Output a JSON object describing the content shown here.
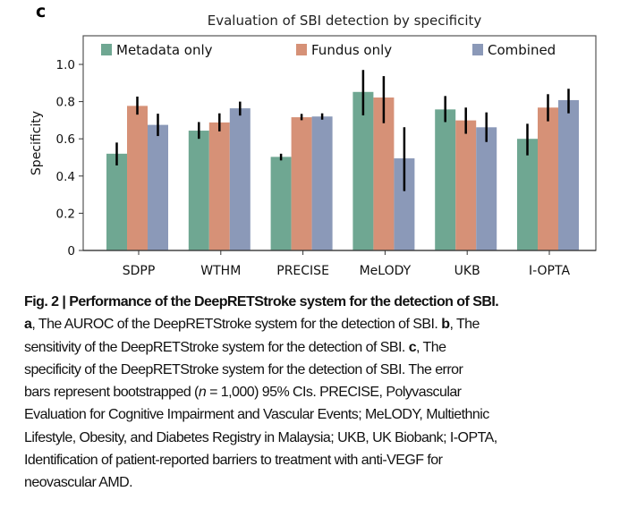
{
  "panel_letter": "c",
  "chart_data": {
    "type": "bar",
    "title": "Evaluation of SBI detection by specificity",
    "xlabel": "",
    "ylabel": "Specificity",
    "ylim": [
      0,
      1.1
    ],
    "yticks": [
      0,
      0.2,
      0.4,
      0.6,
      0.8,
      1.0
    ],
    "ytick_labels": [
      "0",
      "0.2",
      "0.4",
      "0.6",
      "0.8",
      "1.0"
    ],
    "categories": [
      "SDPP",
      "WTHM",
      "PRECISE",
      "MeLODY",
      "UKB",
      "I-OPTA"
    ],
    "legend_position": "top",
    "grid": false,
    "series": [
      {
        "name": "Metadata only",
        "color": "#6fa792",
        "values": [
          0.52,
          0.644,
          0.503,
          0.852,
          0.758,
          0.6
        ],
        "ci_low": [
          0.457,
          0.6,
          0.484,
          0.726,
          0.69,
          0.511
        ],
        "ci_high": [
          0.58,
          0.69,
          0.52,
          0.97,
          0.83,
          0.681
        ]
      },
      {
        "name": "Fundus only",
        "color": "#d69177",
        "values": [
          0.777,
          0.688,
          0.716,
          0.822,
          0.699,
          0.768
        ],
        "ci_low": [
          0.73,
          0.64,
          0.7,
          0.684,
          0.627,
          0.694
        ],
        "ci_high": [
          0.827,
          0.737,
          0.734,
          0.937,
          0.768,
          0.84
        ]
      },
      {
        "name": "Combined",
        "color": "#8b99b8",
        "values": [
          0.675,
          0.764,
          0.72,
          0.495,
          0.662,
          0.808
        ],
        "ci_low": [
          0.615,
          0.725,
          0.703,
          0.319,
          0.583,
          0.737
        ],
        "ci_high": [
          0.735,
          0.8,
          0.737,
          0.662,
          0.742,
          0.869
        ]
      }
    ]
  },
  "caption": {
    "lines": [
      [
        {
          "t": "Fig. 2 | Performance of the DeepRETStroke system for the detection of SBI.",
          "b": true
        }
      ],
      [
        {
          "t": "a",
          "b": true
        },
        {
          "t": ", The AUROC of the DeepRETStroke system for the detection of SBI. "
        },
        {
          "t": "b",
          "b": true
        },
        {
          "t": ", The"
        }
      ],
      [
        {
          "t": "sensitivity of the DeepRETStroke system for the detection of SBI. "
        },
        {
          "t": "c",
          "b": true
        },
        {
          "t": ", The"
        }
      ],
      [
        {
          "t": "specificity of the DeepRETStroke system for the detection of SBI. The error"
        }
      ],
      [
        {
          "t": "bars represent bootstrapped ("
        },
        {
          "t": "n",
          "i": true
        },
        {
          "t": " = 1,000) 95% CIs. PRECISE, Polyvascular"
        }
      ],
      [
        {
          "t": "Evaluation for Cognitive Impairment and Vascular Events; MeLODY, Multiethnic"
        }
      ],
      [
        {
          "t": "Lifestyle, Obesity, and Diabetes Registry in Malaysia; UKB, UK Biobank; I-OPTA,"
        }
      ],
      [
        {
          "t": "Identification of patient-reported barriers to treatment with anti-VEGF for"
        }
      ],
      [
        {
          "t": "neovascular AMD."
        }
      ]
    ]
  }
}
